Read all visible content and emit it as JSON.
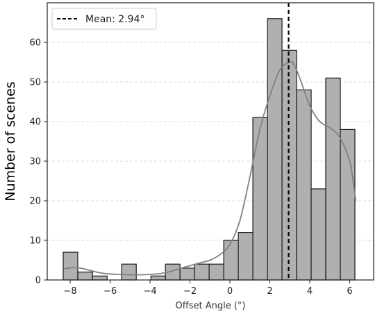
{
  "chart_data": {
    "type": "bar",
    "title": "",
    "xlabel": "Offset Angle (°)",
    "ylabel": "Number of scenes",
    "xlim": [
      -9.15,
      7.2
    ],
    "ylim": [
      0,
      70
    ],
    "xticks": [
      -8,
      -6,
      -4,
      -2,
      0,
      2,
      4,
      6
    ],
    "yticks": [
      0,
      10,
      20,
      30,
      40,
      50,
      60
    ],
    "grid": "horizontal dashed",
    "bins": [
      {
        "x0": -8.35,
        "x1": -7.62,
        "count": 7
      },
      {
        "x0": -7.62,
        "x1": -6.88,
        "count": 2
      },
      {
        "x0": -6.88,
        "x1": -6.15,
        "count": 1
      },
      {
        "x0": -6.15,
        "x1": -5.42,
        "count": 0
      },
      {
        "x0": -5.42,
        "x1": -4.69,
        "count": 4
      },
      {
        "x0": -4.69,
        "x1": -3.96,
        "count": 0
      },
      {
        "x0": -3.96,
        "x1": -3.23,
        "count": 1
      },
      {
        "x0": -3.23,
        "x1": -2.5,
        "count": 4
      },
      {
        "x0": -2.5,
        "x1": -1.77,
        "count": 3
      },
      {
        "x0": -1.77,
        "x1": -1.04,
        "count": 4
      },
      {
        "x0": -1.04,
        "x1": -0.31,
        "count": 4
      },
      {
        "x0": -0.31,
        "x1": 0.42,
        "count": 10
      },
      {
        "x0": 0.42,
        "x1": 1.15,
        "count": 12
      },
      {
        "x0": 1.15,
        "x1": 1.88,
        "count": 41
      },
      {
        "x0": 1.88,
        "x1": 2.61,
        "count": 66
      },
      {
        "x0": 2.61,
        "x1": 3.34,
        "count": 58
      },
      {
        "x0": 3.34,
        "x1": 4.07,
        "count": 48
      },
      {
        "x0": 4.07,
        "x1": 4.8,
        "count": 23
      },
      {
        "x0": 4.8,
        "x1": 5.53,
        "count": 51
      },
      {
        "x0": 5.53,
        "x1": 6.26,
        "count": 38
      }
    ],
    "kde": {
      "x": [
        -8.3,
        -7.9,
        -7.5,
        -7.0,
        -6.5,
        -6.0,
        -5.5,
        -5.0,
        -4.5,
        -4.0,
        -3.5,
        -3.0,
        -2.5,
        -2.0,
        -1.5,
        -1.0,
        -0.5,
        0.0,
        0.5,
        1.0,
        1.5,
        2.0,
        2.5,
        3.0,
        3.2,
        3.5,
        4.0,
        4.5,
        5.0,
        5.5,
        6.0,
        6.3
      ],
      "y": [
        2.8,
        3.1,
        3.0,
        2.4,
        1.8,
        1.5,
        1.4,
        1.3,
        1.3,
        1.4,
        1.6,
        2.1,
        2.9,
        3.6,
        4.3,
        5.0,
        6.4,
        9.0,
        15.0,
        26.0,
        38.0,
        46.5,
        53.0,
        55.0,
        54.5,
        51.0,
        44.0,
        40.0,
        38.5,
        36.0,
        30.0,
        20.0
      ]
    },
    "mean_line": {
      "x": 2.94,
      "label": "Mean: 2.94°"
    },
    "legend": {
      "placement": "top-left",
      "entries": [
        {
          "label": "Mean: 2.94°",
          "style": "dashed"
        }
      ]
    },
    "colors": {
      "bar_fill": "#b0b0b0",
      "bar_edge": "#1a1a1a",
      "kde": "#808080",
      "mean": "#000000",
      "grid": "#d9d9d9"
    }
  }
}
